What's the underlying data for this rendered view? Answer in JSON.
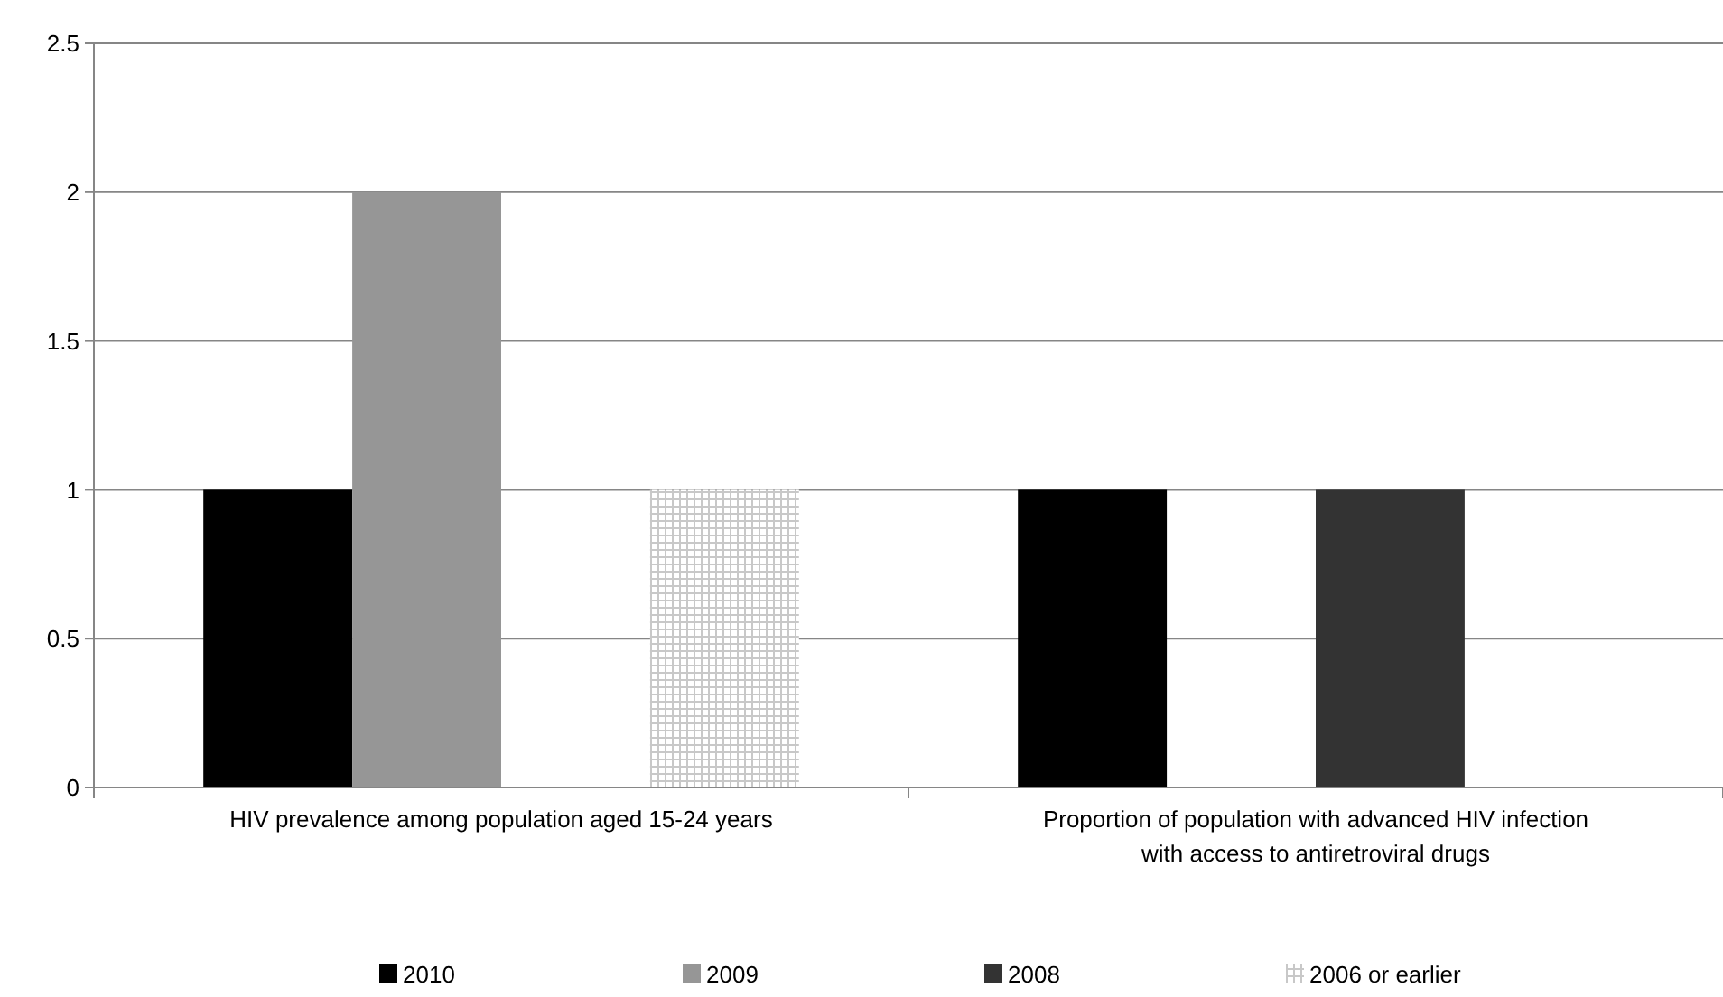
{
  "chart_data": {
    "type": "bar",
    "categories": [
      "HIV prevalence among population aged 15-24 years",
      "Proportion of population with advanced HIV infection with access to antiretroviral drugs"
    ],
    "series": [
      {
        "name": "2010",
        "color": "#000000",
        "values": [
          1,
          1
        ]
      },
      {
        "name": "2009",
        "color": "#969696",
        "values": [
          2,
          0
        ]
      },
      {
        "name": "2008",
        "color": "#333333",
        "values": [
          0,
          1
        ]
      },
      {
        "name": "2006 or earlier",
        "color": "#c8c8c8",
        "values": [
          1,
          0
        ]
      }
    ],
    "ylim": [
      0,
      2.5
    ],
    "yticks": [
      0,
      0.5,
      1,
      1.5,
      2,
      2.5
    ],
    "grid": "y",
    "legend": "bottom"
  }
}
